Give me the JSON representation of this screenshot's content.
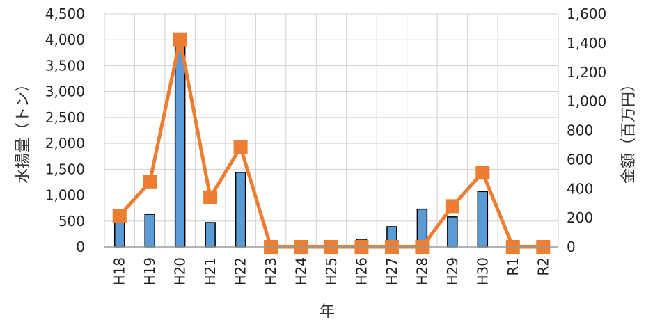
{
  "chart_data": {
    "type": "bar+line",
    "title": "",
    "xlabel": "年",
    "ylabel_left": "水揚量（トン）",
    "ylabel_right": "金額（百万円）",
    "categories": [
      "H18",
      "H19",
      "H20",
      "H21",
      "H22",
      "H23",
      "H24",
      "H25",
      "H26",
      "H27",
      "H28",
      "H29",
      "H30",
      "R1",
      "R2"
    ],
    "ylim_left": [
      0,
      4500
    ],
    "ylim_right": [
      0,
      1600
    ],
    "yticks_left": [
      "0",
      "500",
      "1,000",
      "1,500",
      "2,000",
      "2,500",
      "3,000",
      "3,500",
      "4,000",
      "4,500"
    ],
    "yticks_right": [
      "0",
      "200",
      "400",
      "600",
      "800",
      "1,000",
      "1,200",
      "1,400",
      "1,600"
    ],
    "grid": true,
    "series": [
      {
        "type": "bar",
        "axis": "left",
        "color": "#5b9bd5",
        "values": [
          500,
          630,
          3950,
          470,
          1440,
          0,
          0,
          0,
          150,
          390,
          730,
          580,
          1070,
          0,
          0
        ]
      },
      {
        "type": "line",
        "axis": "right",
        "color": "#ed7d31",
        "values": [
          215,
          445,
          1425,
          340,
          685,
          0,
          0,
          0,
          0,
          0,
          0,
          280,
          510,
          0,
          0
        ]
      }
    ]
  }
}
